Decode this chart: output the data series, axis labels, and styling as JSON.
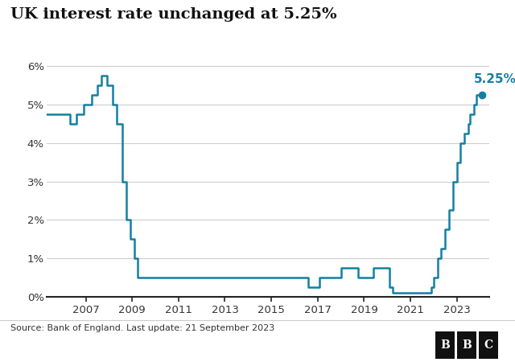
{
  "title": "UK interest rate unchanged at 5.25%",
  "source_text": "Source: Bank of England. Last update: 21 September 2023",
  "line_color": "#1380a1",
  "annotation_color": "#1380a1",
  "background_color": "#ffffff",
  "footer_bg": "#ffffff",
  "footer_line_color": "#cccccc",
  "ylim": [
    0,
    6.4
  ],
  "yticks": [
    0,
    1,
    2,
    3,
    4,
    5,
    6
  ],
  "ytick_labels": [
    "0%",
    "1%",
    "2%",
    "3%",
    "4%",
    "5%",
    "6%"
  ],
  "xtick_positions": [
    2007,
    2009,
    2011,
    2013,
    2015,
    2017,
    2019,
    2021,
    2023
  ],
  "xlim": [
    2005.3,
    2024.4
  ],
  "annotation_value": "5.25%",
  "rates": [
    [
      2004.917,
      4.75
    ],
    [
      2006.333,
      4.75
    ],
    [
      2006.333,
      4.5
    ],
    [
      2006.583,
      4.5
    ],
    [
      2006.583,
      4.75
    ],
    [
      2006.917,
      4.75
    ],
    [
      2006.917,
      5.0
    ],
    [
      2007.25,
      5.0
    ],
    [
      2007.25,
      5.25
    ],
    [
      2007.5,
      5.25
    ],
    [
      2007.5,
      5.5
    ],
    [
      2007.667,
      5.5
    ],
    [
      2007.667,
      5.75
    ],
    [
      2007.917,
      5.75
    ],
    [
      2007.917,
      5.5
    ],
    [
      2008.167,
      5.5
    ],
    [
      2008.167,
      5.0
    ],
    [
      2008.333,
      5.0
    ],
    [
      2008.333,
      4.5
    ],
    [
      2008.583,
      4.5
    ],
    [
      2008.583,
      3.0
    ],
    [
      2008.75,
      3.0
    ],
    [
      2008.75,
      2.0
    ],
    [
      2008.917,
      2.0
    ],
    [
      2008.917,
      1.5
    ],
    [
      2009.083,
      1.5
    ],
    [
      2009.083,
      1.0
    ],
    [
      2009.25,
      1.0
    ],
    [
      2009.25,
      0.5
    ],
    [
      2016.583,
      0.5
    ],
    [
      2016.583,
      0.25
    ],
    [
      2017.083,
      0.25
    ],
    [
      2017.083,
      0.5
    ],
    [
      2018.0,
      0.5
    ],
    [
      2018.0,
      0.75
    ],
    [
      2018.75,
      0.75
    ],
    [
      2018.75,
      0.5
    ],
    [
      2019.417,
      0.5
    ],
    [
      2019.417,
      0.75
    ],
    [
      2020.083,
      0.75
    ],
    [
      2020.083,
      0.25
    ],
    [
      2020.25,
      0.25
    ],
    [
      2020.25,
      0.1
    ],
    [
      2021.917,
      0.1
    ],
    [
      2021.917,
      0.25
    ],
    [
      2022.0,
      0.25
    ],
    [
      2022.0,
      0.5
    ],
    [
      2022.167,
      0.5
    ],
    [
      2022.167,
      1.0
    ],
    [
      2022.333,
      1.0
    ],
    [
      2022.333,
      1.25
    ],
    [
      2022.5,
      1.25
    ],
    [
      2022.5,
      1.75
    ],
    [
      2022.667,
      1.75
    ],
    [
      2022.667,
      2.25
    ],
    [
      2022.833,
      2.25
    ],
    [
      2022.833,
      3.0
    ],
    [
      2023.0,
      3.0
    ],
    [
      2023.0,
      3.5
    ],
    [
      2023.167,
      3.5
    ],
    [
      2023.167,
      4.0
    ],
    [
      2023.333,
      4.0
    ],
    [
      2023.333,
      4.25
    ],
    [
      2023.5,
      4.25
    ],
    [
      2023.5,
      4.5
    ],
    [
      2023.583,
      4.5
    ],
    [
      2023.583,
      4.75
    ],
    [
      2023.75,
      4.75
    ],
    [
      2023.75,
      5.0
    ],
    [
      2023.833,
      5.0
    ],
    [
      2023.833,
      5.25
    ],
    [
      2024.1,
      5.25
    ]
  ]
}
